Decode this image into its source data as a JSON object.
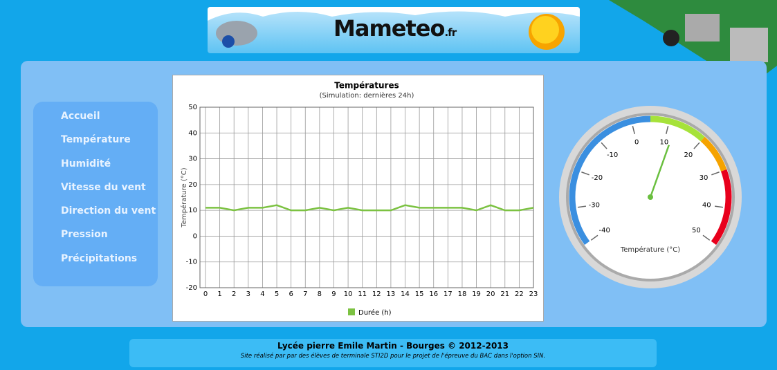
{
  "header": {
    "logo": "Mameteo",
    "logo_suffix": ".fr"
  },
  "nav": [
    "Accueil",
    "Température",
    "Humidité",
    "Vitesse du vent",
    "Direction du vent",
    "Pression",
    "Précipitations"
  ],
  "chart_data": [
    {
      "type": "line",
      "title": "Températures",
      "subtitle": "(Simulation: dernières 24h)",
      "y_label": "Température (°C)",
      "x": [
        0,
        1,
        2,
        3,
        4,
        5,
        6,
        7,
        8,
        9,
        10,
        11,
        12,
        13,
        14,
        15,
        16,
        17,
        18,
        19,
        20,
        21,
        22,
        23
      ],
      "xlim": [
        0,
        23
      ],
      "xticks": [
        0,
        1,
        2,
        3,
        4,
        5,
        6,
        7,
        8,
        9,
        10,
        11,
        12,
        13,
        14,
        15,
        16,
        17,
        18,
        19,
        20,
        21,
        22,
        23
      ],
      "ylim": [
        -20,
        50
      ],
      "yticks": [
        -20,
        -10,
        0,
        10,
        20,
        30,
        40,
        50
      ],
      "grid": true,
      "legend": "bottom",
      "series": [
        {
          "name": "Durée (h)",
          "color": "#7cc242",
          "values": [
            11,
            11,
            10,
            11,
            11,
            12,
            10,
            10,
            11,
            10,
            11,
            10,
            10,
            10,
            12,
            11,
            11,
            11,
            11,
            10,
            12,
            10,
            10,
            11
          ]
        }
      ]
    },
    {
      "type": "gauge",
      "label": "Température (°C)",
      "value": 12,
      "ylim": [
        -40,
        50
      ],
      "yticks": [
        -40,
        -30,
        -20,
        -10,
        0,
        10,
        20,
        30,
        40,
        50
      ],
      "bands": [
        {
          "from": -40,
          "to": 5,
          "color": "#3a8fe0"
        },
        {
          "from": 5,
          "to": 20,
          "color": "#a6e23a"
        },
        {
          "from": 20,
          "to": 30,
          "color": "#f5a300"
        },
        {
          "from": 30,
          "to": 50,
          "color": "#e8001c"
        }
      ],
      "color": "#6abf3f"
    }
  ],
  "footer": {
    "title": "Lycée pierre Emile Martin - Bourges © 2012-2013",
    "text": "Site réalisé par par des élèves de terminale STI2D pour le projet de l'épreuve du BAC dans l'option SIN."
  }
}
